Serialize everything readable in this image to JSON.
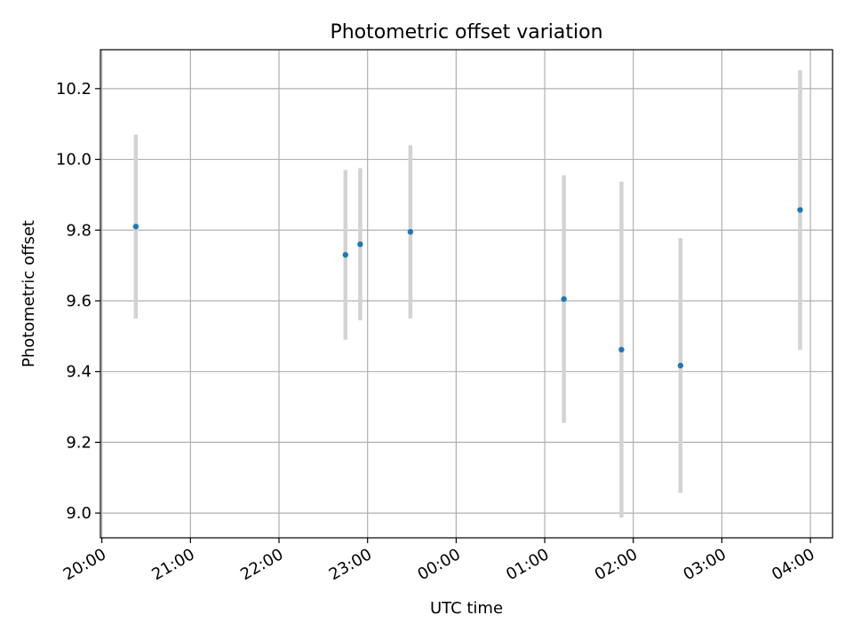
{
  "chart_data": {
    "type": "scatter",
    "title": "Photometric offset variation",
    "xlabel": "UTC time",
    "ylabel": "Photometric offset",
    "x_axis": {
      "kind": "time",
      "start": "20:00",
      "ticks": [
        "20:00",
        "21:00",
        "22:00",
        "23:00",
        "00:00",
        "01:00",
        "02:00",
        "03:00",
        "04:00"
      ],
      "range": [
        "19:59",
        "04:15"
      ]
    },
    "y_axis": {
      "ticks": [
        "9.0",
        "9.2",
        "9.4",
        "9.6",
        "9.8",
        "10.0",
        "10.2"
      ],
      "ylim": [
        8.93,
        10.31
      ]
    },
    "grid": true,
    "legend": "none",
    "marker_color": "#1f77b4",
    "errorbar_color": "#d3d3d3",
    "series": [
      {
        "points": [
          {
            "x": "20:23",
            "y": 9.81,
            "err": 0.26
          },
          {
            "x": "22:45",
            "y": 9.73,
            "err": 0.24
          },
          {
            "x": "22:55",
            "y": 9.76,
            "err": 0.215
          },
          {
            "x": "23:29",
            "y": 9.795,
            "err": 0.245
          },
          {
            "x": "01:13",
            "y": 9.605,
            "err": 0.35
          },
          {
            "x": "01:52",
            "y": 9.462,
            "err": 0.475
          },
          {
            "x": "02:32",
            "y": 9.417,
            "err": 0.36
          },
          {
            "x": "03:53",
            "y": 9.857,
            "err": 0.395
          }
        ]
      }
    ]
  }
}
